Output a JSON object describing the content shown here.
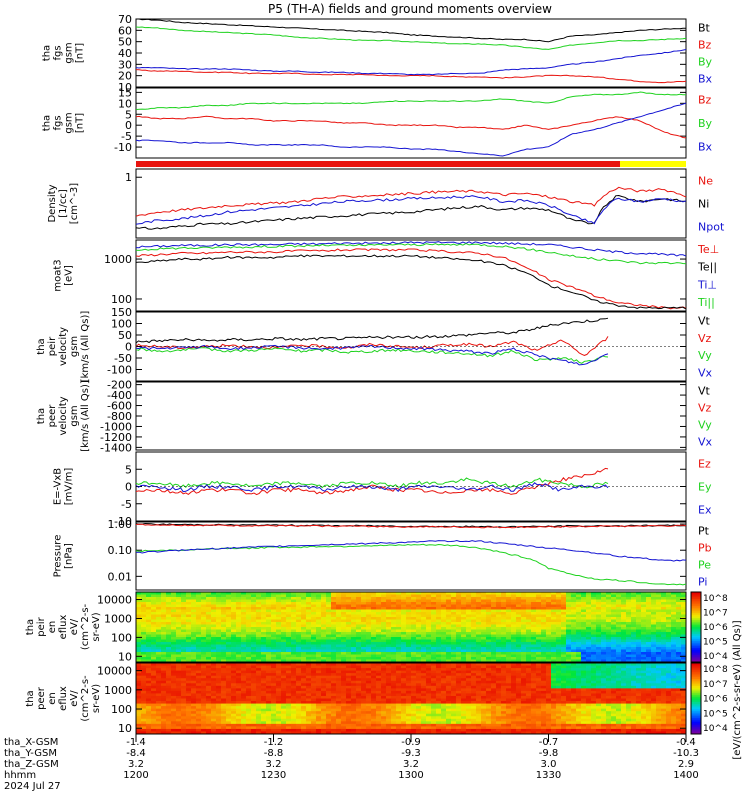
{
  "title": "P5 (TH-A) fields and ground moments overview",
  "colors": {
    "black": "#000000",
    "red": "#e8140f",
    "green": "#1fd21f",
    "blue": "#1414d2",
    "yellow": "#ffff00"
  },
  "chart_data": [
    {
      "type": "line",
      "panel": "fgs_gsm_total",
      "ylabel": [
        "tha",
        "fgs",
        "gsm",
        "[nT]"
      ],
      "ylim": [
        10,
        70
      ],
      "yticks": [
        "10",
        "20",
        "30",
        "40",
        "50",
        "60",
        "70"
      ],
      "series": [
        {
          "name": "Bt",
          "color": "black",
          "values": [
            70,
            69,
            67,
            66,
            65,
            64,
            63,
            62,
            61,
            60,
            59,
            58,
            56,
            55,
            54,
            53,
            52,
            52,
            50,
            55,
            56,
            58,
            60,
            61,
            62
          ]
        },
        {
          "name": "Bz",
          "color": "red",
          "values": [
            25,
            24,
            24,
            23,
            23,
            22,
            22,
            22,
            21,
            21,
            21,
            20,
            20,
            20,
            19,
            19,
            18,
            19,
            20,
            20,
            19,
            17,
            15,
            14,
            15
          ]
        },
        {
          "name": "By",
          "color": "green",
          "values": [
            63,
            62,
            60,
            59,
            58,
            57,
            56,
            54,
            53,
            52,
            51,
            51,
            50,
            49,
            48,
            48,
            47,
            45,
            43,
            47,
            49,
            51,
            51,
            52,
            53
          ]
        },
        {
          "name": "Bx",
          "color": "blue",
          "values": [
            27,
            27,
            26,
            26,
            26,
            25,
            24,
            24,
            23,
            23,
            22,
            22,
            21,
            21,
            22,
            22,
            25,
            26,
            27,
            30,
            32,
            35,
            38,
            40,
            43
          ]
        }
      ]
    },
    {
      "type": "line",
      "panel": "fgs_gsm_components",
      "ylabel": [
        "tha",
        "fgs",
        "gsm",
        "[nT]"
      ],
      "ylim": [
        -15,
        17
      ],
      "yticks": [
        "-10",
        "-5",
        "0",
        "5",
        "10",
        "15"
      ],
      "series": [
        {
          "name": "Bz",
          "color": "red",
          "values": [
            4,
            3,
            3,
            4,
            3,
            3,
            2,
            2,
            2,
            1,
            1,
            0,
            0,
            0,
            -1,
            -1,
            -2,
            0,
            -2,
            0,
            2,
            4,
            2,
            -3,
            -6
          ]
        },
        {
          "name": "By",
          "color": "green",
          "values": [
            7,
            8,
            8,
            9,
            9,
            10,
            10,
            10,
            10,
            10,
            10,
            11,
            11,
            11,
            11,
            11,
            12,
            11,
            10,
            13,
            14,
            14,
            15,
            14,
            14
          ]
        },
        {
          "name": "Bx",
          "color": "blue",
          "values": [
            -7,
            -7,
            -8,
            -8,
            -8,
            -9,
            -9,
            -9,
            -9,
            -10,
            -10,
            -10,
            -11,
            -11,
            -12,
            -13,
            -14,
            -11,
            -10,
            -4,
            -2,
            1,
            4,
            7,
            10
          ]
        }
      ]
    },
    {
      "type": "line",
      "panel": "density",
      "ylabel": [
        "Density",
        "[1/cc]",
        "[cm^-3]"
      ],
      "ylog": true,
      "ylim": [
        0.05,
        1.5
      ],
      "yticks": [
        "1"
      ],
      "series": [
        {
          "name": "Ne",
          "color": "red",
          "values": [
            0.15,
            0.18,
            0.2,
            0.22,
            0.25,
            0.26,
            0.28,
            0.3,
            0.35,
            0.38,
            0.4,
            0.42,
            0.45,
            0.48,
            0.5,
            0.5,
            0.42,
            0.45,
            0.38,
            0.3,
            0.25,
            0.6,
            0.5,
            0.55,
            0.4
          ]
        },
        {
          "name": "Ni",
          "color": "black",
          "values": [
            0.08,
            0.08,
            0.09,
            0.1,
            0.1,
            0.11,
            0.12,
            0.13,
            0.14,
            0.15,
            0.16,
            0.17,
            0.18,
            0.2,
            0.22,
            0.24,
            0.2,
            0.22,
            0.2,
            0.12,
            0.1,
            0.4,
            0.3,
            0.35,
            0.3
          ]
        },
        {
          "name": "Npot",
          "color": "blue",
          "values": [
            0.1,
            0.12,
            0.13,
            0.15,
            0.18,
            0.2,
            0.22,
            0.24,
            0.27,
            0.3,
            0.32,
            0.33,
            0.35,
            0.36,
            0.38,
            0.38,
            0.3,
            0.32,
            0.25,
            0.15,
            0.1,
            0.35,
            0.3,
            0.35,
            0.3
          ]
        }
      ]
    },
    {
      "type": "line",
      "panel": "temperature",
      "ylabel": [
        "moat3",
        "[eV]"
      ],
      "ylog": true,
      "ylim": [
        50,
        3000
      ],
      "yticks": [
        "100",
        "1000"
      ],
      "series": [
        {
          "name": "Te⊥",
          "color": "red",
          "values": [
            1200,
            1300,
            1400,
            1400,
            1500,
            1500,
            1500,
            1600,
            1600,
            1700,
            1700,
            1700,
            1700,
            1600,
            1500,
            1400,
            1100,
            600,
            300,
            200,
            120,
            80,
            70,
            60,
            60
          ]
        },
        {
          "name": "Te||",
          "color": "black",
          "values": [
            800,
            900,
            1000,
            1000,
            1100,
            1100,
            1100,
            1200,
            1200,
            1200,
            1200,
            1200,
            1200,
            1100,
            1000,
            900,
            700,
            450,
            220,
            150,
            90,
            70,
            60,
            60,
            60
          ]
        },
        {
          "name": "Ti⊥",
          "color": "blue",
          "values": [
            2000,
            2100,
            2200,
            2200,
            2300,
            2300,
            2300,
            2400,
            2400,
            2500,
            2500,
            2500,
            2600,
            2600,
            2600,
            2600,
            2500,
            2400,
            2300,
            2000,
            1700,
            1500,
            1400,
            1300,
            1200
          ]
        },
        {
          "name": "Ti||",
          "color": "green",
          "values": [
            1700,
            1800,
            1900,
            1900,
            2000,
            2000,
            2100,
            2100,
            2200,
            2200,
            2200,
            2300,
            2300,
            2300,
            2300,
            2300,
            2100,
            1800,
            1500,
            1200,
            1000,
            900,
            800,
            800,
            800
          ]
        }
      ]
    },
    {
      "type": "line",
      "panel": "peir_velocity",
      "ylabel": [
        "tha",
        "peir",
        "velocity",
        "gsm",
        "[km/s (All Qs)]"
      ],
      "ylim": [
        -150,
        150
      ],
      "yticks": [
        "-100",
        "-50",
        "0",
        "50",
        "100",
        "150"
      ],
      "series": [
        {
          "name": "Vt",
          "color": "black",
          "values": [
            20,
            25,
            30,
            25,
            30,
            30,
            35,
            30,
            35,
            35,
            40,
            40,
            40,
            45,
            50,
            60,
            60,
            80,
            100,
            110,
            120
          ]
        },
        {
          "name": "Vz",
          "color": "red",
          "values": [
            5,
            0,
            -5,
            0,
            5,
            0,
            -5,
            5,
            0,
            -5,
            10,
            0,
            -5,
            5,
            10,
            0,
            20,
            -20,
            30,
            -40,
            40
          ]
        },
        {
          "name": "Vy",
          "color": "green",
          "values": [
            -10,
            -20,
            -15,
            -10,
            -20,
            -15,
            -10,
            -20,
            -15,
            -25,
            -20,
            -15,
            -20,
            -25,
            -30,
            -40,
            -20,
            -60,
            -50,
            -70,
            -40
          ]
        },
        {
          "name": "Vx",
          "color": "blue",
          "values": [
            -5,
            -10,
            -5,
            0,
            -10,
            -5,
            0,
            -5,
            -10,
            -5,
            0,
            -5,
            -10,
            -15,
            -20,
            -30,
            -10,
            -40,
            -60,
            -80,
            -30
          ]
        }
      ]
    },
    {
      "type": "line",
      "panel": "peer_velocity",
      "ylabel": [
        "tha",
        "peer",
        "velocity",
        "gsm",
        "[km/s (All Qs)]"
      ],
      "ylim": [
        -1450,
        -150
      ],
      "yticks": [
        "-1400",
        "-1200",
        "-1000",
        "-800",
        "-600",
        "-400",
        "-200"
      ],
      "series": [
        {
          "name": "Vt",
          "color": "black",
          "values": []
        },
        {
          "name": "Vz",
          "color": "red",
          "values": []
        },
        {
          "name": "Vy",
          "color": "green",
          "values": []
        },
        {
          "name": "Vx",
          "color": "blue",
          "values": []
        }
      ]
    },
    {
      "type": "line",
      "panel": "efield",
      "ylabel": [
        "E=-VxB",
        "[mV/m]"
      ],
      "ylim": [
        -10,
        10
      ],
      "yticks": [
        "-10",
        "-5",
        "0",
        "5"
      ],
      "series": [
        {
          "name": "Ez",
          "color": "red",
          "values": [
            -1,
            -1,
            -2,
            -1,
            -1,
            -2,
            -1,
            -1,
            -2,
            -1,
            0,
            -1,
            -1,
            -2,
            -1,
            -1,
            -2,
            0,
            2,
            3,
            5
          ]
        },
        {
          "name": "Ey",
          "color": "green",
          "values": [
            1,
            1,
            0,
            1,
            1,
            0,
            1,
            1,
            0,
            1,
            1,
            0,
            1,
            1,
            2,
            1,
            0,
            2,
            1,
            0,
            1
          ]
        },
        {
          "name": "Ex",
          "color": "blue",
          "values": [
            0,
            0,
            -1,
            0,
            0,
            -1,
            0,
            0,
            -1,
            0,
            0,
            -1,
            0,
            0,
            -1,
            0,
            -1,
            1,
            -1,
            0,
            0
          ]
        }
      ]
    },
    {
      "type": "line",
      "panel": "pressure",
      "ylabel": [
        "Pressure",
        "[nPa]"
      ],
      "ylog": true,
      "ylim": [
        0.003,
        1.2
      ],
      "yticks": [
        "0.01",
        "0.10",
        "1.00"
      ],
      "series": [
        {
          "name": "Pt",
          "color": "black",
          "values": [
            1.0,
            0.98,
            0.96,
            0.95,
            0.93,
            0.92,
            0.9,
            0.9,
            0.88,
            0.87,
            0.86,
            0.85,
            0.83,
            0.82,
            0.8,
            0.8,
            0.78,
            0.8,
            0.82,
            0.84,
            0.85,
            0.86,
            0.87,
            0.88,
            0.9
          ]
        },
        {
          "name": "Pb",
          "color": "red",
          "values": [
            0.95,
            0.93,
            0.91,
            0.9,
            0.88,
            0.87,
            0.86,
            0.85,
            0.84,
            0.83,
            0.82,
            0.8,
            0.79,
            0.78,
            0.77,
            0.76,
            0.75,
            0.77,
            0.79,
            0.81,
            0.82,
            0.83,
            0.84,
            0.85,
            0.86
          ]
        },
        {
          "name": "Pe",
          "color": "green",
          "values": [
            0.09,
            0.1,
            0.1,
            0.11,
            0.12,
            0.12,
            0.13,
            0.13,
            0.14,
            0.14,
            0.15,
            0.15,
            0.16,
            0.16,
            0.15,
            0.12,
            0.08,
            0.05,
            0.02,
            0.012,
            0.008,
            0.007,
            0.006,
            0.005,
            0.005
          ]
        },
        {
          "name": "Pi",
          "color": "blue",
          "values": [
            0.08,
            0.09,
            0.1,
            0.11,
            0.12,
            0.13,
            0.14,
            0.15,
            0.16,
            0.17,
            0.18,
            0.19,
            0.2,
            0.22,
            0.23,
            0.22,
            0.18,
            0.15,
            0.12,
            0.1,
            0.08,
            0.06,
            0.05,
            0.04,
            0.04
          ]
        }
      ]
    },
    {
      "type": "heatmap",
      "panel": "peir_en_eflux",
      "ylabel": [
        "tha",
        "peir",
        "en",
        "eflux",
        "eV/",
        "(cm^2-s-",
        "sr-eV)"
      ],
      "ylog": true,
      "ylim": [
        5,
        25000
      ],
      "yticks": [
        "10",
        "100",
        "1000",
        "10000"
      ]
    },
    {
      "type": "heatmap",
      "panel": "peer_en_eflux",
      "ylabel": [
        "tha",
        "peer",
        "en",
        "eflux",
        "eV/",
        "(cm^2-s-",
        "sr-eV)"
      ],
      "ylog": true,
      "ylim": [
        5,
        25000
      ],
      "yticks": [
        "10",
        "100",
        "1000",
        "10000"
      ]
    }
  ],
  "colorbar": {
    "label": "[eV/(cm^2-s-sr-eV) (All Qs)]",
    "ticks": [
      "10^4",
      "10^5",
      "10^6",
      "10^7",
      "10^8"
    ]
  },
  "xaxis": {
    "rows": [
      {
        "label": "tha_X-GSM",
        "values": [
          "-1.4",
          "-1.2",
          "-0.9",
          "-0.7",
          "-0.4"
        ]
      },
      {
        "label": "tha_Y-GSM",
        "values": [
          "-8.4",
          "-8.8",
          "-9.3",
          "-9.8",
          "-10.3"
        ]
      },
      {
        "label": "tha_Z-GSM",
        "values": [
          "3.2",
          "3.2",
          "3.2",
          "3.0",
          "2.9"
        ]
      },
      {
        "label": "hhmm",
        "values": [
          "1200",
          "1230",
          "1300",
          "1330",
          "1400"
        ]
      }
    ],
    "date": "2024 Jul 27"
  }
}
